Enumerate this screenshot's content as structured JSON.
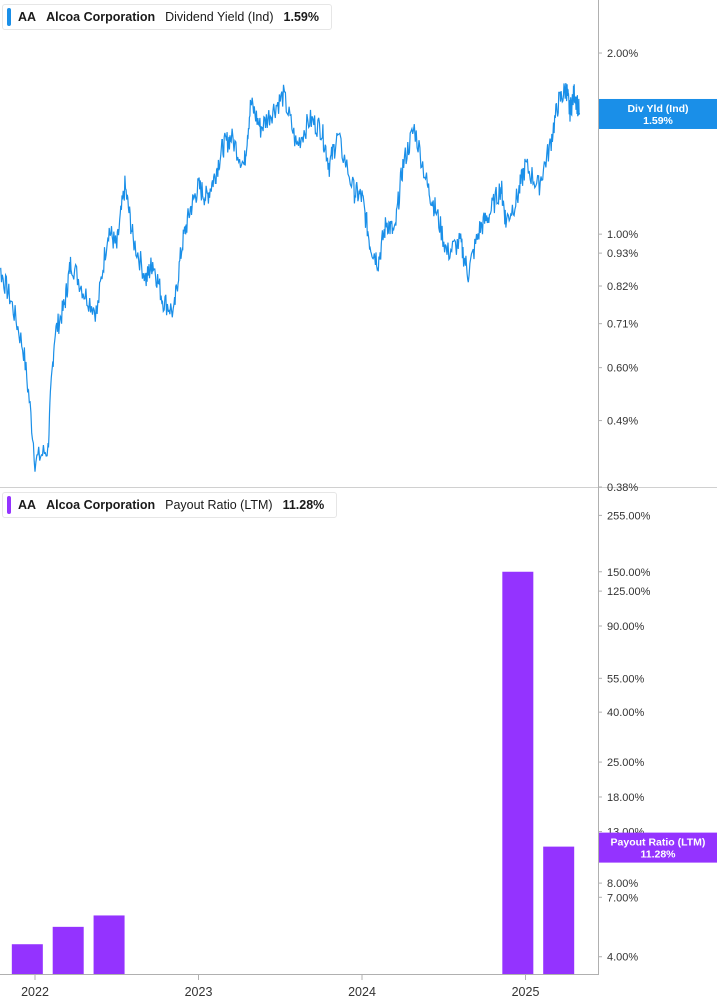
{
  "colors": {
    "yield_line": "#1a8fe8",
    "payout_bar": "#9433ff",
    "axis_line": "#b0b0b0",
    "tick_text": "#333333"
  },
  "legend_top": {
    "ticker": "AA",
    "company": "Alcoa Corporation",
    "metric": "Dividend Yield (Ind)",
    "value": "1.59%"
  },
  "legend_bottom": {
    "ticker": "AA",
    "company": "Alcoa Corporation",
    "metric": "Payout Ratio (LTM)",
    "value": "11.28%"
  },
  "chart_data": [
    {
      "type": "line",
      "series": [
        {
          "name": "Dividend Yield (Ind)",
          "x": [
            2021.7,
            2021.78,
            2021.85,
            2021.93,
            2022.0,
            2022.08,
            2022.12,
            2022.18,
            2022.22,
            2022.3,
            2022.38,
            2022.45,
            2022.5,
            2022.55,
            2022.6,
            2022.68,
            2022.72,
            2022.78,
            2022.85,
            2022.9,
            2022.95,
            2023.0,
            2023.05,
            2023.1,
            2023.15,
            2023.2,
            2023.28,
            2023.32,
            2023.38,
            2023.45,
            2023.52,
            2023.6,
            2023.68,
            2023.75,
            2023.8,
            2023.85,
            2023.95,
            2024.0,
            2024.05,
            2024.1,
            2024.15,
            2024.2,
            2024.25,
            2024.32,
            2024.4,
            2024.45,
            2024.52,
            2024.6,
            2024.65,
            2024.72,
            2024.78,
            2024.85,
            2024.88,
            2024.95,
            2025.0,
            2025.08,
            2025.15,
            2025.2,
            2025.25,
            2025.27,
            2025.3,
            2025.33
          ],
          "values": [
            0.75,
            0.88,
            0.78,
            0.64,
            0.42,
            0.44,
            0.68,
            0.76,
            0.9,
            0.8,
            0.74,
            1.02,
            0.95,
            1.2,
            0.98,
            0.84,
            0.9,
            0.78,
            0.74,
            0.96,
            1.1,
            1.2,
            1.15,
            1.25,
            1.4,
            1.45,
            1.3,
            1.65,
            1.5,
            1.6,
            1.7,
            1.4,
            1.55,
            1.5,
            1.3,
            1.45,
            1.18,
            1.15,
            0.96,
            0.9,
            1.05,
            1.0,
            1.3,
            1.5,
            1.2,
            1.1,
            0.93,
            0.97,
            0.86,
            1.02,
            1.08,
            1.2,
            1.05,
            1.15,
            1.3,
            1.2,
            1.4,
            1.65,
            1.75,
            1.6,
            1.72,
            1.59
          ]
        }
      ],
      "y_ticks": [
        "2.00%",
        "1.00%",
        "0.93%",
        "0.82%",
        "0.71%",
        "0.60%",
        "0.49%",
        "0.38%"
      ],
      "y_tick_values": [
        2.0,
        1.0,
        0.93,
        0.82,
        0.71,
        0.6,
        0.49,
        0.38
      ],
      "scale": "log",
      "ylim": [
        0.38,
        2.45
      ],
      "last_value_tag": [
        "Div Yld (Ind)",
        "1.59%"
      ],
      "grid": false
    },
    {
      "type": "bar",
      "series": [
        {
          "name": "Payout Ratio (LTM)",
          "x": [
            2021.95,
            2022.2,
            2022.45,
            2024.95,
            2025.2
          ],
          "values": [
            4.5,
            5.3,
            5.9,
            150.0,
            11.28
          ]
        }
      ],
      "y_ticks": [
        "255.00%",
        "150.00%",
        "125.00%",
        "90.00%",
        "55.00%",
        "40.00%",
        "25.00%",
        "18.00%",
        "13.00%",
        "8.00%",
        "7.00%",
        "4.00%"
      ],
      "y_tick_values": [
        255,
        150,
        125,
        90,
        55,
        40,
        25,
        18,
        13,
        8,
        7,
        4
      ],
      "scale": "log",
      "ylim": [
        3.4,
        330
      ],
      "last_value_tag": [
        "Payout Ratio (LTM)",
        "11.28%"
      ],
      "x_ticks": [
        "2022",
        "2023",
        "2024",
        "2025"
      ],
      "x_tick_values": [
        2022,
        2023,
        2024,
        2025
      ],
      "grid": false
    }
  ]
}
